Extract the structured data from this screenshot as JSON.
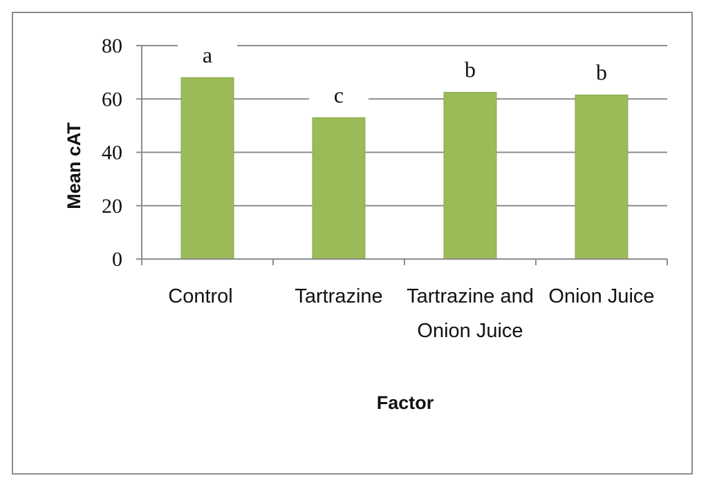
{
  "chart_data": {
    "type": "bar",
    "categories": [
      "Control",
      "Tartrazine",
      "Tartrazine and Onion Juice",
      "Onion Juice"
    ],
    "category_lines": [
      [
        "Control"
      ],
      [
        "Tartrazine"
      ],
      [
        "Tartrazine and",
        "Onion Juice"
      ],
      [
        "Onion Juice"
      ]
    ],
    "values": [
      68,
      53,
      62.5,
      61.5
    ],
    "significance": [
      "a",
      "c",
      "b",
      "b"
    ],
    "xlabel": "Factor",
    "ylabel": "Mean  cAT",
    "ylim": [
      0,
      80
    ],
    "yticks": [
      0,
      20,
      40,
      60,
      80
    ],
    "grid": true,
    "legend": "none",
    "bar_color": "#9bbb59",
    "grid_color": "#8c8c8c"
  }
}
